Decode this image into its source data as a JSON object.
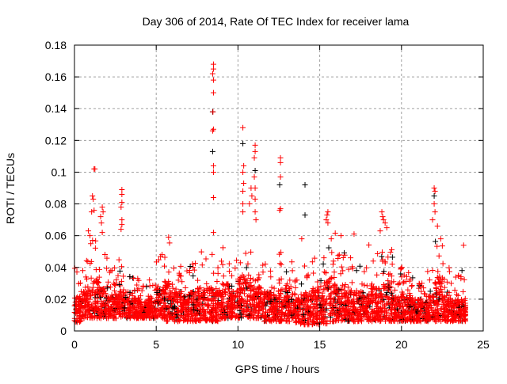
{
  "chart_data": {
    "type": "scatter",
    "title": "Day 306 of 2014, Rate Of TEC Index for receiver lama",
    "xlabel": "GPS time / hours",
    "ylabel": "ROTI / TECUs",
    "xlim": [
      0,
      25
    ],
    "ylim": [
      0,
      0.18
    ],
    "xticks": [
      "0",
      "5",
      "10",
      "15",
      "20",
      "25"
    ],
    "yticks": [
      "0",
      "0.02",
      "0.04",
      "0.06",
      "0.08",
      "0.1",
      "0.12",
      "0.14",
      "0.16",
      "0.18"
    ],
    "grid": true,
    "marker": "plus",
    "colors": {
      "primary": "#ff0000",
      "secondary": "#000000",
      "grid": "#a0a0a0"
    },
    "band_bins_hours": 0.5,
    "band": [
      [
        0,
        0.005,
        0.04
      ],
      [
        0.5,
        0.008,
        0.045
      ],
      [
        1,
        0.008,
        0.06
      ],
      [
        1.5,
        0.008,
        0.05
      ],
      [
        2,
        0.008,
        0.04
      ],
      [
        2.5,
        0.008,
        0.045
      ],
      [
        3,
        0.008,
        0.035
      ],
      [
        3.5,
        0.008,
        0.035
      ],
      [
        4,
        0.008,
        0.03
      ],
      [
        4.5,
        0.008,
        0.035
      ],
      [
        5,
        0.008,
        0.05
      ],
      [
        5.5,
        0.006,
        0.06
      ],
      [
        6,
        0.006,
        0.045
      ],
      [
        6.5,
        0.006,
        0.04
      ],
      [
        7,
        0.006,
        0.045
      ],
      [
        7.5,
        0.006,
        0.05
      ],
      [
        8,
        0.006,
        0.05
      ],
      [
        8.5,
        0.006,
        0.045
      ],
      [
        9,
        0.008,
        0.055
      ],
      [
        9.5,
        0.008,
        0.045
      ],
      [
        10,
        0.008,
        0.065
      ],
      [
        10.5,
        0.008,
        0.06
      ],
      [
        11,
        0.008,
        0.05
      ],
      [
        11.5,
        0.006,
        0.045
      ],
      [
        12,
        0.006,
        0.04
      ],
      [
        12.5,
        0.006,
        0.05
      ],
      [
        13,
        0.006,
        0.045
      ],
      [
        13.5,
        0.004,
        0.04
      ],
      [
        14,
        0.004,
        0.045
      ],
      [
        14.5,
        0.004,
        0.05
      ],
      [
        15,
        0.004,
        0.06
      ],
      [
        15.5,
        0.006,
        0.065
      ],
      [
        16,
        0.006,
        0.05
      ],
      [
        16.5,
        0.006,
        0.05
      ],
      [
        17,
        0.006,
        0.045
      ],
      [
        17.5,
        0.006,
        0.04
      ],
      [
        18,
        0.006,
        0.055
      ],
      [
        18.5,
        0.006,
        0.05
      ],
      [
        19,
        0.006,
        0.06
      ],
      [
        19.5,
        0.006,
        0.04
      ],
      [
        20,
        0.006,
        0.045
      ],
      [
        20.5,
        0.006,
        0.035
      ],
      [
        21,
        0.006,
        0.035
      ],
      [
        21.5,
        0.006,
        0.04
      ],
      [
        22,
        0.006,
        0.06
      ],
      [
        22.5,
        0.006,
        0.045
      ],
      [
        23,
        0.006,
        0.035
      ],
      [
        23.5,
        0.006,
        0.035
      ]
    ],
    "points": [
      [
        8.5,
        0.168,
        "r"
      ],
      [
        8.5,
        0.165,
        "r"
      ],
      [
        8.45,
        0.162,
        "r"
      ],
      [
        8.5,
        0.158,
        "r"
      ],
      [
        8.5,
        0.15,
        "r"
      ],
      [
        8.45,
        0.138,
        "k"
      ],
      [
        8.47,
        0.138,
        "r"
      ],
      [
        8.5,
        0.127,
        "r"
      ],
      [
        8.45,
        0.126,
        "r"
      ],
      [
        8.45,
        0.113,
        "k"
      ],
      [
        8.5,
        0.104,
        "r"
      ],
      [
        8.5,
        0.1,
        "r"
      ],
      [
        8.5,
        0.084,
        "r"
      ],
      [
        8.5,
        0.062,
        "r"
      ],
      [
        1.2,
        0.102,
        "r"
      ],
      [
        1.25,
        0.102,
        "r"
      ],
      [
        1.1,
        0.085,
        "r"
      ],
      [
        1.15,
        0.083,
        "r"
      ],
      [
        1.05,
        0.075,
        "r"
      ],
      [
        1.2,
        0.076,
        "r"
      ],
      [
        0.85,
        0.063,
        "r"
      ],
      [
        0.95,
        0.06,
        "r"
      ],
      [
        1.0,
        0.055,
        "r"
      ],
      [
        1.7,
        0.078,
        "r"
      ],
      [
        1.75,
        0.075,
        "r"
      ],
      [
        1.6,
        0.072,
        "r"
      ],
      [
        1.65,
        0.068,
        "r"
      ],
      [
        1.7,
        0.062,
        "r"
      ],
      [
        2.9,
        0.089,
        "r"
      ],
      [
        2.9,
        0.086,
        "r"
      ],
      [
        2.9,
        0.081,
        "r"
      ],
      [
        2.85,
        0.078,
        "r"
      ],
      [
        2.9,
        0.07,
        "r"
      ],
      [
        2.9,
        0.067,
        "r"
      ],
      [
        2.85,
        0.064,
        "r"
      ],
      [
        10.3,
        0.128,
        "r"
      ],
      [
        10.3,
        0.118,
        "k"
      ],
      [
        10.35,
        0.104,
        "r"
      ],
      [
        10.3,
        0.1,
        "r"
      ],
      [
        10.35,
        0.093,
        "r"
      ],
      [
        10.3,
        0.088,
        "r"
      ],
      [
        10.3,
        0.08,
        "r"
      ],
      [
        10.3,
        0.075,
        "r"
      ],
      [
        10.8,
        0.09,
        "r"
      ],
      [
        10.85,
        0.085,
        "r"
      ],
      [
        10.7,
        0.08,
        "r"
      ],
      [
        11.05,
        0.117,
        "r"
      ],
      [
        11.05,
        0.113,
        "r"
      ],
      [
        11.0,
        0.109,
        "r"
      ],
      [
        11.05,
        0.101,
        "k"
      ],
      [
        11.0,
        0.097,
        "r"
      ],
      [
        11.05,
        0.09,
        "r"
      ],
      [
        11.05,
        0.083,
        "r"
      ],
      [
        11.05,
        0.075,
        "r"
      ],
      [
        11.1,
        0.07,
        "r"
      ],
      [
        12.6,
        0.109,
        "r"
      ],
      [
        12.6,
        0.106,
        "r"
      ],
      [
        12.6,
        0.097,
        "r"
      ],
      [
        12.55,
        0.092,
        "k"
      ],
      [
        12.6,
        0.077,
        "r"
      ],
      [
        12.55,
        0.076,
        "r"
      ],
      [
        14.1,
        0.092,
        "k"
      ],
      [
        14.1,
        0.073,
        "k"
      ],
      [
        13.9,
        0.058,
        "r"
      ],
      [
        15.5,
        0.075,
        "r"
      ],
      [
        15.45,
        0.073,
        "r"
      ],
      [
        15.4,
        0.07,
        "r"
      ],
      [
        15.5,
        0.068,
        "r"
      ],
      [
        16.3,
        0.06,
        "r"
      ],
      [
        17.1,
        0.061,
        "r"
      ],
      [
        18.8,
        0.075,
        "r"
      ],
      [
        18.85,
        0.072,
        "r"
      ],
      [
        18.9,
        0.07,
        "r"
      ],
      [
        19.0,
        0.068,
        "r"
      ],
      [
        19.1,
        0.065,
        "r"
      ],
      [
        18.7,
        0.063,
        "r"
      ],
      [
        22.0,
        0.09,
        "r"
      ],
      [
        22.05,
        0.088,
        "r"
      ],
      [
        22.0,
        0.085,
        "k"
      ],
      [
        22.0,
        0.08,
        "r"
      ],
      [
        22.05,
        0.075,
        "r"
      ],
      [
        21.9,
        0.07,
        "r"
      ],
      [
        22.2,
        0.066,
        "r"
      ],
      [
        22.4,
        0.058,
        "r"
      ],
      [
        23.8,
        0.054,
        "r"
      ],
      [
        23.7,
        0.038,
        "k"
      ]
    ]
  }
}
